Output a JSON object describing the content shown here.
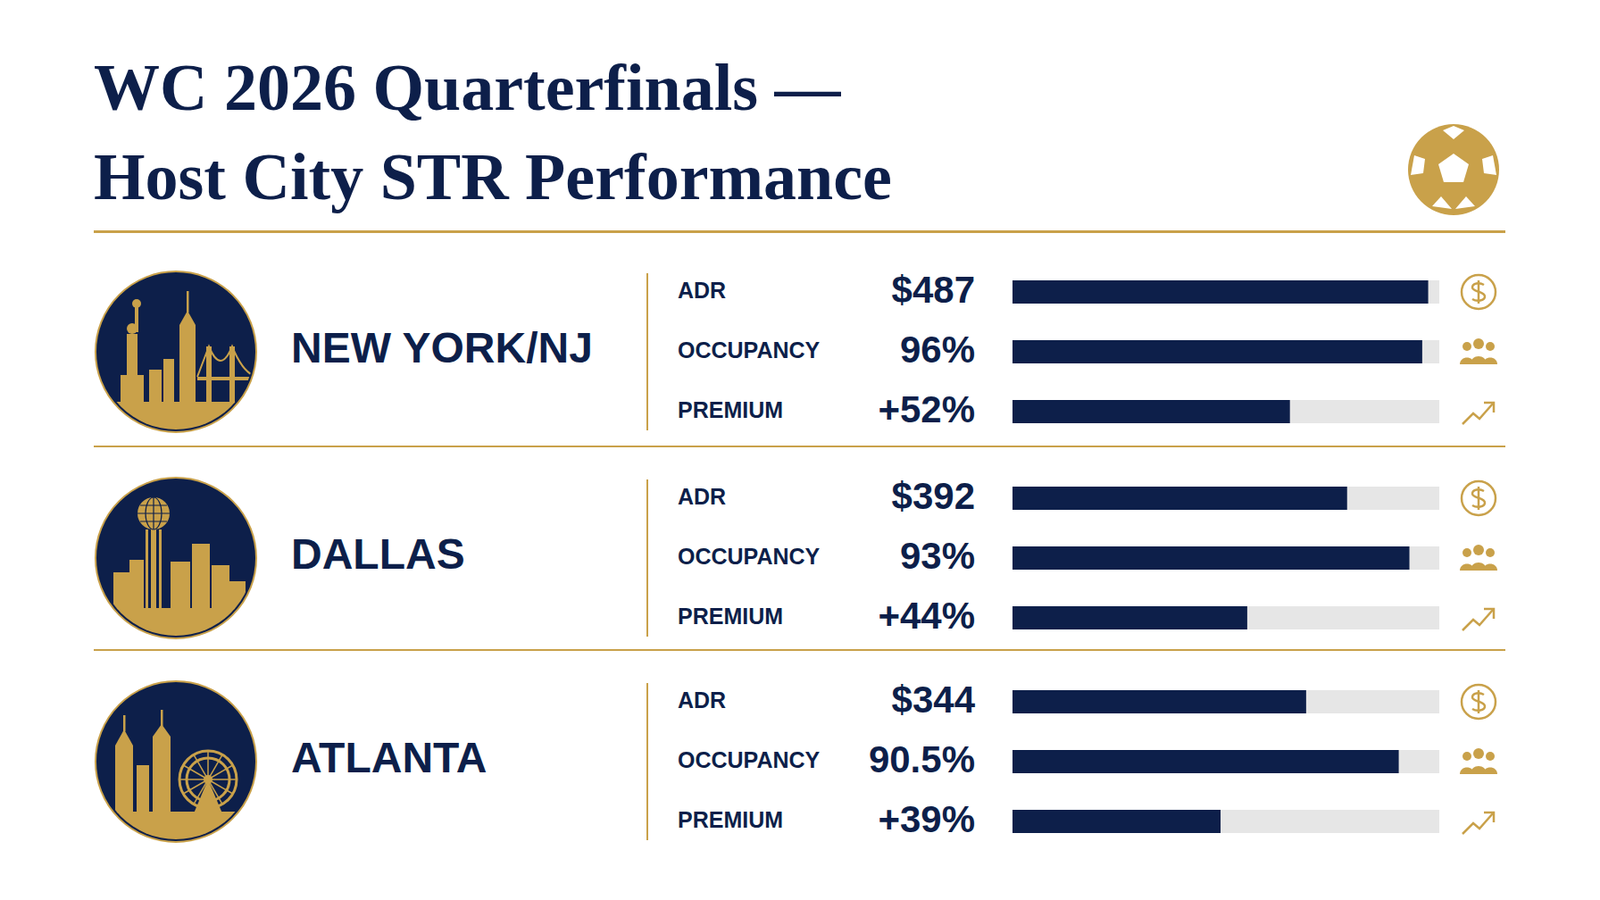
{
  "title": "WC 2026 Quarterfinals — Host City STR Performance",
  "chart_data": [
    {
      "type": "bar",
      "orientation": "horizontal",
      "title": "NEW YORK/NJ",
      "color": "#0d1f4a",
      "data_labels": true,
      "tick_labels": "y",
      "panels": [
        {
          "categories": [
            "ADR"
          ],
          "values": [
            487
          ],
          "value_labels": [
            "$487"
          ],
          "xlim": [
            0,
            500
          ]
        },
        {
          "categories": [
            "OCCUPANCY"
          ],
          "values": [
            96
          ],
          "value_labels": [
            "96%"
          ],
          "xlim": [
            0,
            100
          ]
        },
        {
          "categories": [
            "PREMIUM"
          ],
          "values": [
            52
          ],
          "value_labels": [
            "+52%"
          ],
          "xlim": [
            0,
            80
          ]
        }
      ]
    },
    {
      "type": "bar",
      "orientation": "horizontal",
      "title": "DALLAS",
      "color": "#0d1f4a",
      "data_labels": true,
      "tick_labels": "y",
      "panels": [
        {
          "categories": [
            "ADR"
          ],
          "values": [
            392
          ],
          "value_labels": [
            "$392"
          ],
          "xlim": [
            0,
            500
          ]
        },
        {
          "categories": [
            "OCCUPANCY"
          ],
          "values": [
            93
          ],
          "value_labels": [
            "93%"
          ],
          "xlim": [
            0,
            100
          ]
        },
        {
          "categories": [
            "PREMIUM"
          ],
          "values": [
            44
          ],
          "value_labels": [
            "+44%"
          ],
          "xlim": [
            0,
            80
          ]
        }
      ]
    },
    {
      "type": "bar",
      "orientation": "horizontal",
      "title": "ATLANTA",
      "color": "#0d1f4a",
      "data_labels": true,
      "tick_labels": "y",
      "panels": [
        {
          "categories": [
            "ADR"
          ],
          "values": [
            344
          ],
          "value_labels": [
            "$344"
          ],
          "xlim": [
            0,
            500
          ]
        },
        {
          "categories": [
            "OCCUPANCY"
          ],
          "values": [
            90.5
          ],
          "value_labels": [
            "90.5%"
          ],
          "xlim": [
            0,
            100
          ]
        },
        {
          "categories": [
            "PREMIUM"
          ],
          "values": [
            39
          ],
          "value_labels": [
            "+39%"
          ],
          "xlim": [
            0,
            80
          ]
        }
      ]
    }
  ]
}
